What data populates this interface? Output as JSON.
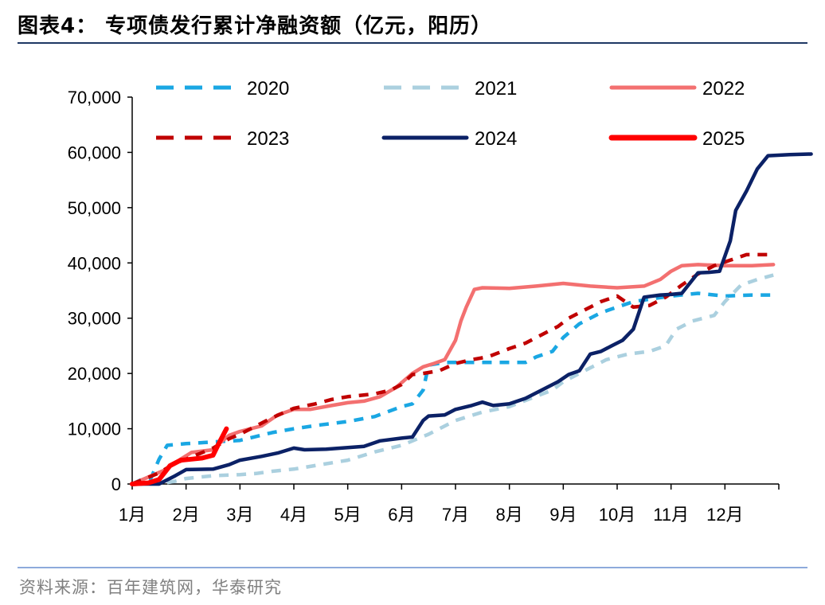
{
  "header": {
    "figure_title": "图表4： 专项债发行累计净融资额（亿元，阳历）"
  },
  "footer": {
    "source": "资料来源：百年建筑网，华泰研究"
  },
  "chart_data": {
    "type": "line",
    "categories": [
      "1月",
      "2月",
      "3月",
      "4月",
      "5月",
      "6月",
      "7月",
      "8月",
      "9月",
      "10月",
      "11月",
      "12月"
    ],
    "ylim": [
      0,
      70000
    ],
    "y_ticks": [
      {
        "value": 0,
        "label": "0"
      },
      {
        "value": 10000,
        "label": "10,000"
      },
      {
        "value": 20000,
        "label": "20,000"
      },
      {
        "value": 30000,
        "label": "30,000"
      },
      {
        "value": 40000,
        "label": "40,000"
      },
      {
        "value": 50000,
        "label": "50,000"
      },
      {
        "value": 60000,
        "label": "60,000"
      },
      {
        "value": 70000,
        "label": "70,000"
      }
    ],
    "xlabel": "",
    "ylabel": "",
    "grid": false,
    "legend_position": "top",
    "series": [
      {
        "name": "2020",
        "color": "#1aa7e3",
        "style": "dashed",
        "points": [
          [
            0,
            0
          ],
          [
            0.15,
            700
          ],
          [
            0.35,
            1100
          ],
          [
            0.5,
            4500
          ],
          [
            0.65,
            7000
          ],
          [
            1,
            7300
          ],
          [
            1.5,
            7600
          ],
          [
            2,
            7900
          ],
          [
            2.3,
            8600
          ],
          [
            2.6,
            9300
          ],
          [
            3,
            10000
          ],
          [
            3.5,
            10700
          ],
          [
            4,
            11300
          ],
          [
            4.5,
            12200
          ],
          [
            5,
            14000
          ],
          [
            5.2,
            14500
          ],
          [
            5.4,
            17000
          ],
          [
            5.5,
            21500
          ],
          [
            5.8,
            22000
          ],
          [
            6.2,
            22000
          ],
          [
            6.6,
            22000
          ],
          [
            7,
            22000
          ],
          [
            7.3,
            22000
          ],
          [
            7.5,
            23000
          ],
          [
            7.8,
            24000
          ],
          [
            8,
            26500
          ],
          [
            8.3,
            29000
          ],
          [
            8.7,
            31000
          ],
          [
            9,
            32000
          ],
          [
            9.3,
            33000
          ],
          [
            10,
            34000
          ],
          [
            10.5,
            34500
          ],
          [
            11,
            34000
          ],
          [
            11.5,
            34200
          ],
          [
            11.9,
            34200
          ]
        ]
      },
      {
        "name": "2021",
        "color": "#abd0df",
        "style": "dashed",
        "points": [
          [
            0,
            0
          ],
          [
            0.5,
            0
          ],
          [
            0.8,
            500
          ],
          [
            1,
            1000
          ],
          [
            1.5,
            1500
          ],
          [
            2,
            1700
          ],
          [
            2.3,
            1900
          ],
          [
            2.6,
            2300
          ],
          [
            3,
            2700
          ],
          [
            3.5,
            3500
          ],
          [
            4,
            4300
          ],
          [
            4.5,
            5800
          ],
          [
            5,
            7000
          ],
          [
            5.5,
            9000
          ],
          [
            6,
            11500
          ],
          [
            6.5,
            13000
          ],
          [
            7,
            14000
          ],
          [
            7.4,
            15500
          ],
          [
            7.8,
            17000
          ],
          [
            8,
            18500
          ],
          [
            8.3,
            20000
          ],
          [
            8.6,
            21500
          ],
          [
            8.8,
            22500
          ],
          [
            9.2,
            23500
          ],
          [
            9.6,
            24000
          ],
          [
            9.9,
            25000
          ],
          [
            10.1,
            28000
          ],
          [
            10.4,
            29500
          ],
          [
            10.8,
            30500
          ],
          [
            11,
            33000
          ],
          [
            11.3,
            36000
          ],
          [
            11.6,
            37000
          ],
          [
            11.9,
            37800
          ]
        ]
      },
      {
        "name": "2022",
        "color": "#f37070",
        "style": "solid",
        "points": [
          [
            0,
            0
          ],
          [
            0.6,
            2500
          ],
          [
            0.9,
            4500
          ],
          [
            1.1,
            5700
          ],
          [
            1.5,
            6200
          ],
          [
            1.6,
            7200
          ],
          [
            1.8,
            8800
          ],
          [
            2,
            9500
          ],
          [
            2.4,
            10500
          ],
          [
            2.7,
            12500
          ],
          [
            3,
            13500
          ],
          [
            3.3,
            13500
          ],
          [
            3.7,
            14200
          ],
          [
            4,
            14700
          ],
          [
            4.3,
            15000
          ],
          [
            4.6,
            15800
          ],
          [
            4.9,
            17500
          ],
          [
            5.2,
            20000
          ],
          [
            5.4,
            21200
          ],
          [
            5.6,
            21800
          ],
          [
            5.8,
            22500
          ],
          [
            6,
            26000
          ],
          [
            6.1,
            29500
          ],
          [
            6.2,
            32000
          ],
          [
            6.35,
            35200
          ],
          [
            6.5,
            35500
          ],
          [
            7,
            35400
          ],
          [
            7.5,
            35800
          ],
          [
            8,
            36300
          ],
          [
            8.5,
            35800
          ],
          [
            9,
            35500
          ],
          [
            9.5,
            35800
          ],
          [
            9.8,
            37000
          ],
          [
            10,
            38500
          ],
          [
            10.2,
            39500
          ],
          [
            10.5,
            39700
          ],
          [
            11,
            39500
          ],
          [
            11.5,
            39500
          ],
          [
            11.9,
            39700
          ]
        ]
      },
      {
        "name": "2023",
        "color": "#c00000",
        "style": "dashed",
        "points": [
          [
            0,
            0
          ],
          [
            0.5,
            2000
          ],
          [
            0.8,
            3800
          ],
          [
            1,
            4500
          ],
          [
            1.5,
            6500
          ],
          [
            1.8,
            8200
          ],
          [
            2,
            9000
          ],
          [
            2.3,
            10500
          ],
          [
            2.6,
            12000
          ],
          [
            3,
            13700
          ],
          [
            3.4,
            14500
          ],
          [
            3.7,
            15300
          ],
          [
            4,
            15800
          ],
          [
            4.5,
            16300
          ],
          [
            4.8,
            17000
          ],
          [
            5,
            18000
          ],
          [
            5.2,
            19800
          ],
          [
            5.4,
            20000
          ],
          [
            5.7,
            20500
          ],
          [
            6,
            21800
          ],
          [
            6.3,
            22500
          ],
          [
            6.6,
            23000
          ],
          [
            7,
            24500
          ],
          [
            7.3,
            25500
          ],
          [
            7.6,
            27000
          ],
          [
            7.9,
            28500
          ],
          [
            8.1,
            30000
          ],
          [
            8.4,
            31500
          ],
          [
            8.7,
            33000
          ],
          [
            9,
            34000
          ],
          [
            9.3,
            32000
          ],
          [
            9.6,
            32300
          ],
          [
            9.9,
            33800
          ],
          [
            10.2,
            36000
          ],
          [
            10.5,
            38000
          ],
          [
            10.8,
            39500
          ],
          [
            11.1,
            40500
          ],
          [
            11.4,
            41500
          ],
          [
            11.9,
            41500
          ]
        ]
      },
      {
        "name": "2024",
        "color": "#0b2166",
        "style": "solid",
        "points": [
          [
            0,
            0
          ],
          [
            0.5,
            0
          ],
          [
            0.8,
            1500
          ],
          [
            1,
            2600
          ],
          [
            1.5,
            2700
          ],
          [
            1.8,
            3500
          ],
          [
            2,
            4300
          ],
          [
            2.4,
            5000
          ],
          [
            2.7,
            5600
          ],
          [
            3,
            6500
          ],
          [
            3.2,
            6200
          ],
          [
            3.6,
            6300
          ],
          [
            4,
            6600
          ],
          [
            4.3,
            6800
          ],
          [
            4.6,
            7800
          ],
          [
            5,
            8300
          ],
          [
            5.2,
            8500
          ],
          [
            5.4,
            11500
          ],
          [
            5.5,
            12300
          ],
          [
            5.8,
            12500
          ],
          [
            6,
            13500
          ],
          [
            6.3,
            14200
          ],
          [
            6.5,
            14800
          ],
          [
            6.7,
            14200
          ],
          [
            7,
            14500
          ],
          [
            7.3,
            15500
          ],
          [
            7.6,
            17000
          ],
          [
            7.9,
            18500
          ],
          [
            8.1,
            19800
          ],
          [
            8.3,
            20500
          ],
          [
            8.5,
            23500
          ],
          [
            8.7,
            24000
          ],
          [
            8.9,
            25000
          ],
          [
            9.1,
            26000
          ],
          [
            9.3,
            28000
          ],
          [
            9.5,
            33800
          ],
          [
            9.8,
            34200
          ],
          [
            10,
            34300
          ],
          [
            10.2,
            34500
          ],
          [
            10.5,
            38200
          ],
          [
            10.7,
            38300
          ],
          [
            10.9,
            38500
          ],
          [
            11.1,
            44000
          ],
          [
            11.2,
            49500
          ],
          [
            11.4,
            53000
          ],
          [
            11.6,
            57000
          ],
          [
            11.8,
            59400
          ],
          [
            12.2,
            59600
          ],
          [
            12.6,
            59700
          ]
        ]
      },
      {
        "name": "2025",
        "color": "#ff0000",
        "style": "solid",
        "bold": true,
        "points": [
          [
            0,
            0
          ],
          [
            0.3,
            200
          ],
          [
            0.5,
            800
          ],
          [
            0.7,
            3300
          ],
          [
            0.9,
            4300
          ],
          [
            1.1,
            4500
          ],
          [
            1.3,
            4700
          ],
          [
            1.5,
            5200
          ],
          [
            1.6,
            7200
          ],
          [
            1.75,
            10000
          ]
        ]
      }
    ]
  }
}
